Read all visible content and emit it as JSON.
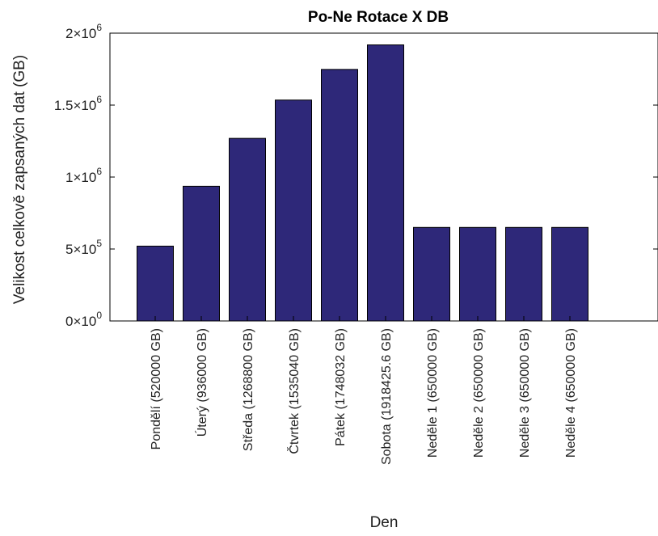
{
  "chart_data": {
    "type": "bar",
    "title": "Po-Ne Rotace X DB",
    "xlabel": "Den",
    "ylabel": "Velikost celkově zapsaných dat (GB)",
    "categories": [
      "Pondělí (520000 GB)",
      "Úterý (936000 GB)",
      "Středa (1268800 GB)",
      "Čtvrtek (1535040 GB)",
      "Pátek (1748032 GB)",
      "Sobota (1918425.6 GB)",
      "Neděle 1 (650000 GB)",
      "Neděle 2 (650000 GB)",
      "Neděle 3 (650000 GB)",
      "Neděle 4 (650000 GB)"
    ],
    "values": [
      520000,
      936000,
      1268800,
      1535040,
      1748032,
      1918425.6,
      650000,
      650000,
      650000,
      650000
    ],
    "ylim": [
      0,
      2000000
    ],
    "yticks": [
      {
        "value": 0,
        "mantissa": "0",
        "exponent": "0"
      },
      {
        "value": 500000,
        "mantissa": "5",
        "exponent": "5"
      },
      {
        "value": 1000000,
        "mantissa": "1",
        "exponent": "6"
      },
      {
        "value": 1500000,
        "mantissa": "1.5",
        "exponent": "6"
      },
      {
        "value": 2000000,
        "mantissa": "2",
        "exponent": "6"
      }
    ],
    "grid": false,
    "bar_color": "#2e2879"
  }
}
